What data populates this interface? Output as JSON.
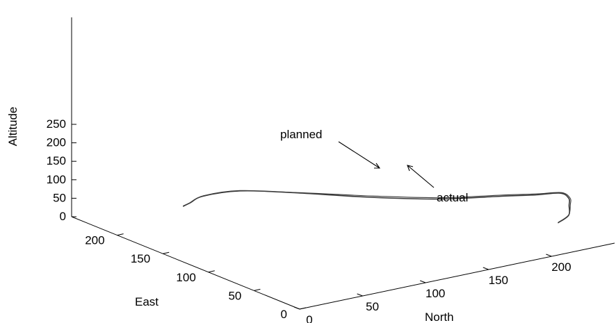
{
  "chart_data": {
    "type": "line",
    "projection": "3d",
    "title": "",
    "axes": {
      "z": {
        "label": "Altitude",
        "range": [
          0,
          250
        ],
        "ticks": [
          "0",
          "50",
          "100",
          "150",
          "200",
          "250"
        ]
      },
      "east": {
        "label": "East",
        "range": [
          0,
          250
        ],
        "ticks": [
          "0",
          "50",
          "100",
          "150",
          "200"
        ]
      },
      "north": {
        "label": "North",
        "range": [
          0,
          250
        ],
        "ticks": [
          "0",
          "50",
          "100",
          "150",
          "200"
        ]
      }
    },
    "grid": false,
    "series": [
      {
        "name": "planned",
        "points": [
          [
            67,
            220,
            10
          ],
          [
            64,
            210,
            30
          ],
          [
            67,
            199,
            58
          ],
          [
            83,
            180,
            80
          ],
          [
            108,
            150,
            88
          ],
          [
            140,
            113,
            93
          ],
          [
            170,
            80,
            100
          ],
          [
            200,
            52,
            114
          ],
          [
            215,
            38,
            120
          ],
          [
            233,
            35,
            114
          ],
          [
            240,
            35,
            94
          ],
          [
            238,
            32,
            80
          ],
          [
            228,
            20,
            72
          ],
          [
            214,
            12,
            70
          ]
        ]
      },
      {
        "name": "actual",
        "points": [
          [
            67,
            220,
            11
          ],
          [
            65,
            210,
            31
          ],
          [
            68,
            199,
            59
          ],
          [
            83,
            180,
            81
          ],
          [
            107,
            150,
            88
          ],
          [
            138,
            113,
            91
          ],
          [
            168,
            80,
            98
          ],
          [
            198,
            52,
            112
          ],
          [
            214,
            38,
            118
          ],
          [
            232,
            35,
            113
          ],
          [
            239,
            35,
            94
          ],
          [
            237,
            32,
            79
          ],
          [
            228,
            20,
            71
          ],
          [
            214,
            12,
            69
          ]
        ]
      }
    ],
    "annotations": [
      {
        "text": "planned",
        "target_series": "planned"
      },
      {
        "text": "actual",
        "target_series": "actual"
      }
    ]
  }
}
